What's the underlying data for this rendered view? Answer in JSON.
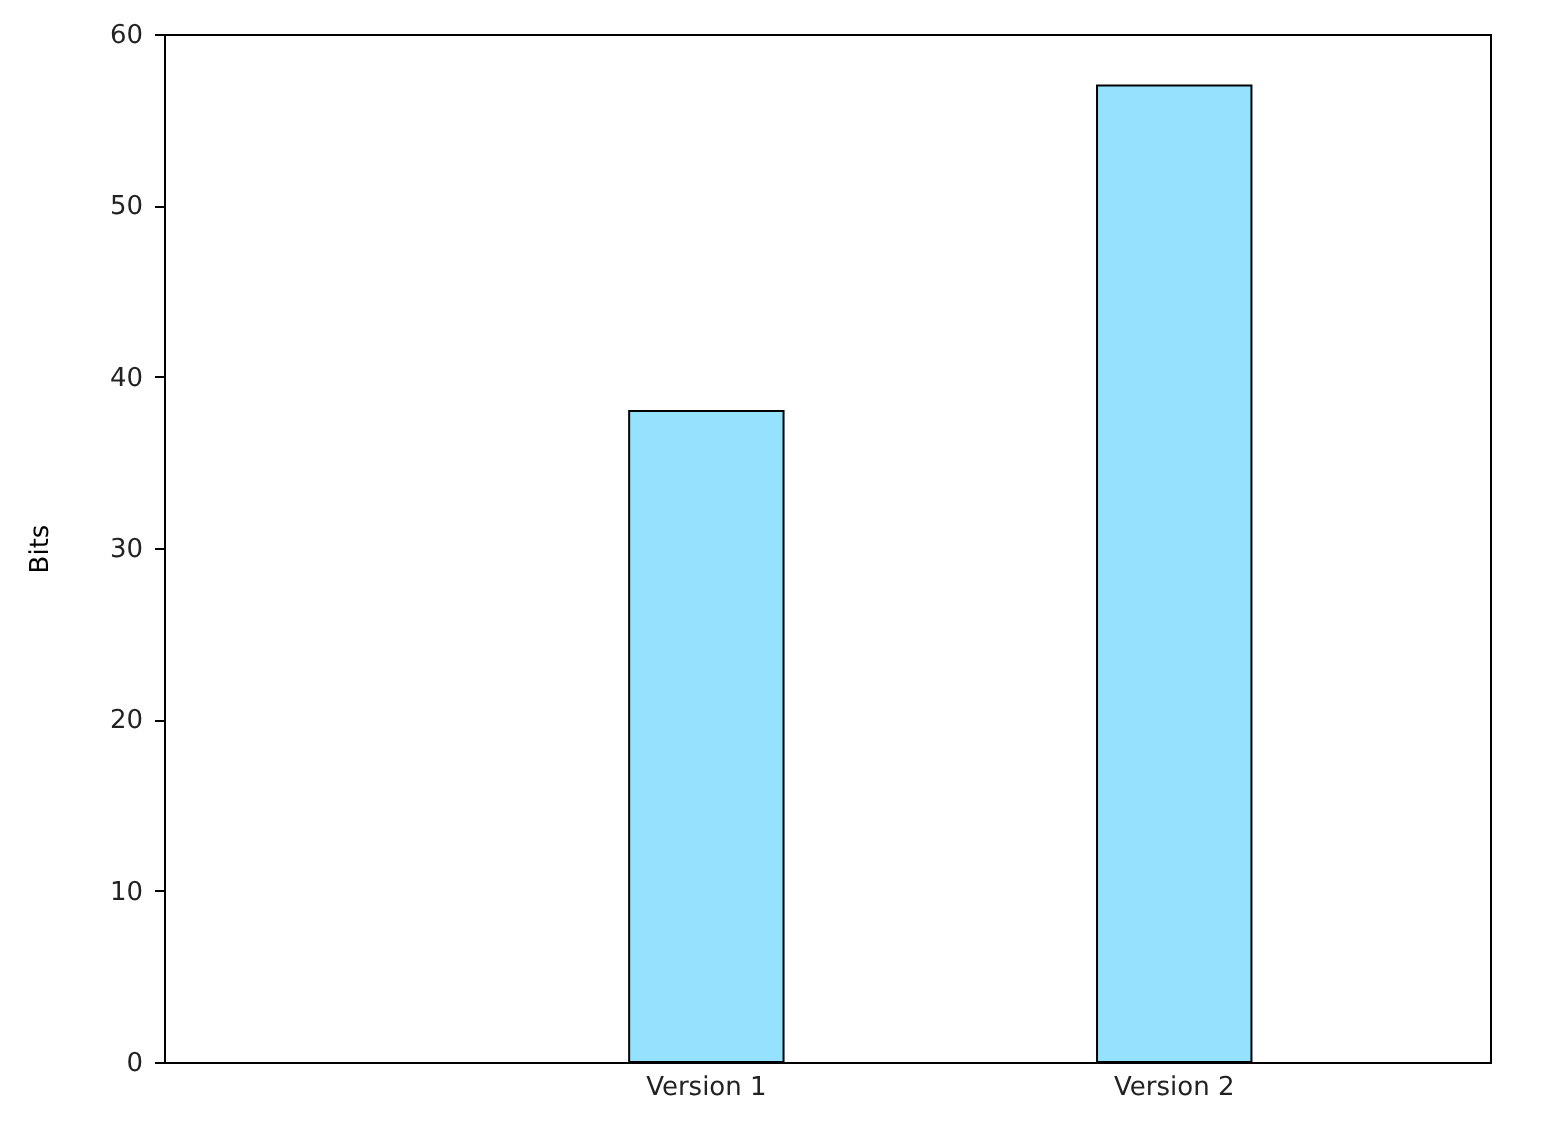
{
  "chart_data": {
    "type": "bar",
    "ylabel": "Bits",
    "categories": [
      "Version 1",
      "Version 2"
    ],
    "values": [
      38,
      57
    ],
    "color": "#94e2ff",
    "ylim": [
      0,
      60
    ],
    "yticks": [
      0,
      10,
      20,
      30,
      40,
      50,
      60
    ],
    "grid": false
  }
}
